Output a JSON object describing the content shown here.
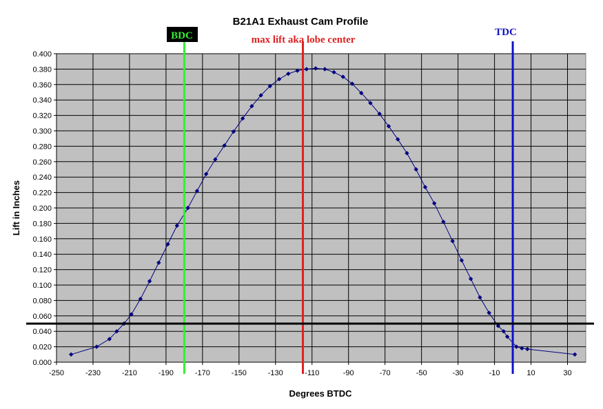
{
  "chart_data": {
    "type": "scatter",
    "title": "B21A1 Exhaust Cam Profile",
    "xlabel": "Degrees BTDC",
    "ylabel": "Lift in Inches",
    "xlim": [
      -250,
      40
    ],
    "ylim": [
      0,
      0.4
    ],
    "x_ticks": [
      "-250",
      "-230",
      "-210",
      "-190",
      "-170",
      "-150",
      "-130",
      "-110",
      "-90",
      "-70",
      "-50",
      "-30",
      "-10",
      "10",
      "30"
    ],
    "y_ticks": [
      "0.000",
      "0.020",
      "0.040",
      "0.060",
      "0.080",
      "0.100",
      "0.120",
      "0.140",
      "0.160",
      "0.180",
      "0.200",
      "0.220",
      "0.240",
      "0.260",
      "0.280",
      "0.300",
      "0.320",
      "0.340",
      "0.360",
      "0.380",
      "0.400"
    ],
    "grid": true,
    "plot_background": "#c0c0c0",
    "series": [
      {
        "color": "#000080",
        "marker": "diamond",
        "x": [
          -242,
          -228,
          -221,
          -217,
          -213,
          -209,
          -204,
          -199,
          -194,
          -189,
          -184,
          -178,
          -173,
          -168,
          -163,
          -158,
          -153,
          -148,
          -143,
          -138,
          -133,
          -128,
          -123,
          -118,
          -113,
          -108,
          -103,
          -98,
          -93,
          -88,
          -83,
          -78,
          -73,
          -68,
          -63,
          -58,
          -53,
          -48,
          -43,
          -38,
          -33,
          -28,
          -23,
          -18,
          -13,
          -8,
          -5,
          -3,
          2,
          5,
          8,
          34
        ],
        "y": [
          0.01,
          0.02,
          0.03,
          0.04,
          0.05,
          0.062,
          0.082,
          0.105,
          0.129,
          0.153,
          0.177,
          0.2,
          0.222,
          0.244,
          0.263,
          0.281,
          0.299,
          0.316,
          0.332,
          0.346,
          0.358,
          0.367,
          0.374,
          0.378,
          0.38,
          0.381,
          0.38,
          0.376,
          0.37,
          0.361,
          0.349,
          0.336,
          0.322,
          0.306,
          0.289,
          0.271,
          0.25,
          0.227,
          0.206,
          0.182,
          0.157,
          0.132,
          0.108,
          0.084,
          0.064,
          0.047,
          0.04,
          0.033,
          0.02,
          0.018,
          0.017,
          0.01
        ]
      }
    ],
    "reference_lines": [
      {
        "orientation": "vertical",
        "x": -180,
        "color": "#33ee33",
        "label": "BDC",
        "label_style": "boxed"
      },
      {
        "orientation": "vertical",
        "x": -115,
        "color": "#e02020",
        "label": "max lift aka lobe center",
        "label_style": "plain"
      },
      {
        "orientation": "vertical",
        "x": 0,
        "color": "#1010c8",
        "label": "TDC",
        "label_style": "plain"
      },
      {
        "orientation": "horizontal",
        "y": 0.05,
        "color": "#000000"
      }
    ]
  }
}
